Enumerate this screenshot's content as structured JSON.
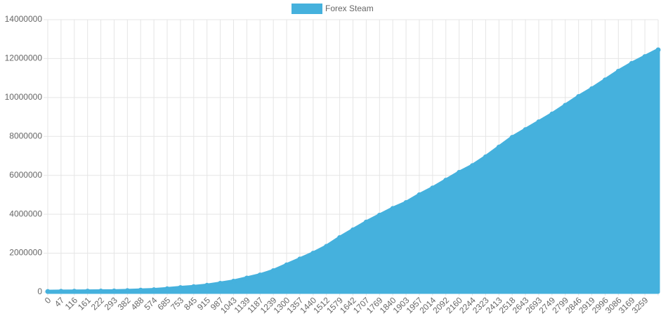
{
  "chart_data": {
    "type": "area",
    "legend_position": "top",
    "grid": true,
    "series": [
      {
        "name": "Forex Steam",
        "color": "#45b1dd",
        "values": [
          30000,
          40000,
          45000,
          50000,
          55000,
          60000,
          75000,
          100000,
          120000,
          170000,
          230000,
          280000,
          350000,
          450000,
          560000,
          720000,
          880000,
          1100000,
          1400000,
          1700000,
          2000000,
          2350000,
          2800000,
          3200000,
          3600000,
          3950000,
          4300000,
          4600000,
          5000000,
          5350000,
          5750000,
          6150000,
          6500000,
          6950000,
          7450000,
          7950000,
          8350000,
          8750000,
          9150000,
          9600000,
          10050000,
          10450000,
          10900000,
          11350000,
          11750000,
          12100000,
          12450000
        ]
      }
    ],
    "categories": [
      "0",
      "47",
      "116",
      "161",
      "222",
      "293",
      "382",
      "488",
      "574",
      "685",
      "753",
      "845",
      "915",
      "987",
      "1043",
      "1139",
      "1187",
      "1239",
      "1300",
      "1357",
      "1440",
      "1512",
      "1579",
      "1642",
      "1707",
      "1769",
      "1840",
      "1903",
      "1957",
      "2014",
      "2092",
      "2160",
      "2244",
      "2323",
      "2413",
      "2518",
      "2643",
      "2693",
      "2749",
      "2799",
      "2846",
      "2919",
      "2996",
      "3086",
      "3169",
      "3259",
      null
    ],
    "ylim": [
      0,
      14000000
    ],
    "yticks": [
      0,
      2000000,
      4000000,
      6000000,
      8000000,
      10000000,
      12000000,
      14000000
    ]
  }
}
